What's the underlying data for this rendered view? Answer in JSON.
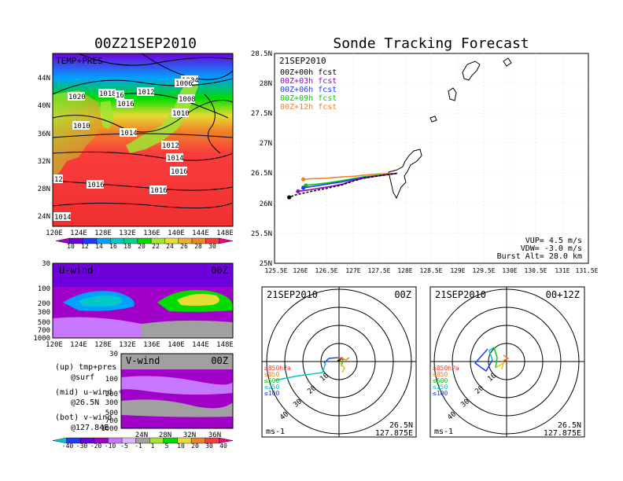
{
  "colors": {
    "frame": "#000000",
    "fcst_00h": "#000000",
    "fcst_03h": "#a000c8",
    "fcst_06h": "#1e3cff",
    "fcst_09h": "#00d000",
    "fcst_12h": "#f08228",
    "temp_scale": [
      "#a000c8",
      "#6e00dc",
      "#1e3cff",
      "#00a0ff",
      "#00c8c8",
      "#00d28c",
      "#00dc00",
      "#a0e632",
      "#e6dc32",
      "#e6af2d",
      "#f08228",
      "#fa3c3c",
      "#f00082"
    ],
    "wind_scale": [
      "#00c8c8",
      "#1e3cff",
      "#6e00dc",
      "#a000c8",
      "#c878ff",
      "#dcb4ff",
      "#a0a0a0",
      "#a0e632",
      "#00dc00",
      "#e6dc32",
      "#f08228",
      "#fa3c3c",
      "#f00082"
    ]
  },
  "left_title": "00Z21SEP2010",
  "right_title": "Sonde Tracking Forecast",
  "map_panel": {
    "label": "TEMP+PRES",
    "lat_labels": [
      "44N",
      "40N",
      "36N",
      "32N",
      "28N",
      "24N"
    ],
    "lon_labels": [
      "120E",
      "124E",
      "128E",
      "132E",
      "136E",
      "140E",
      "144E",
      "148E"
    ],
    "isobar_labels": [
      "1004",
      "1006",
      "1008",
      "1010",
      "1010",
      "1012",
      "1012",
      "1014",
      "1014",
      "1014",
      "1016",
      "1016",
      "1016",
      "1016",
      "1018",
      "1020",
      "16",
      "12"
    ],
    "colorbar_ticks": [
      "10",
      "12",
      "14",
      "16",
      "18",
      "20",
      "22",
      "24",
      "26",
      "28",
      "30"
    ]
  },
  "u_panel": {
    "label": "U-wind",
    "time": "00Z",
    "p_labels": [
      "30",
      "100",
      "200",
      "300",
      "500",
      "700",
      "1000"
    ],
    "lon_labels": [
      "120E",
      "124E",
      "128E",
      "132E",
      "136E",
      "140E",
      "144E",
      "148E"
    ]
  },
  "v_panel": {
    "label": "V-wind",
    "time": "00Z",
    "p_labels": [
      "30",
      "100",
      "200",
      "300",
      "500",
      "700",
      "1000"
    ],
    "lat_labels": [
      "24N",
      "28N",
      "32N",
      "36N"
    ],
    "colorbar_ticks": [
      "-40",
      "-30",
      "-20",
      "-10",
      "-5",
      "-1",
      "1",
      "5",
      "10",
      "20",
      "30",
      "40"
    ]
  },
  "notes": {
    "up": "(up) tmp+pres",
    "up2": "@surf",
    "mid": "(mid) u-wind",
    "mid2": "@26.5N",
    "bot": "(bot) v-wind",
    "bot2": "@127.84E"
  },
  "track_panel": {
    "date": "21SEP2010",
    "legend": [
      "00Z+00h fcst",
      "00Z+03h fcst",
      "00Z+06h fcst",
      "00Z+09h fcst",
      "00Z+12h fcst"
    ],
    "lat_labels": [
      "28.5N",
      "28N",
      "27.5N",
      "27N",
      "26.5N",
      "26N",
      "25.5N",
      "25N"
    ],
    "lon_labels": [
      "125.5E",
      "126E",
      "126.5E",
      "127E",
      "127.5E",
      "128E",
      "128.5E",
      "129E",
      "129.5E",
      "130E",
      "130.5E",
      "131E",
      "131.5E"
    ],
    "vup": "VUP= 4.5 m/s",
    "vdw": "VDW= -3.0 m/s",
    "burst": "Burst Alt= 28.0 km"
  },
  "hodo_left": {
    "date": "21SEP2010",
    "time": "00Z",
    "units": "ms-1",
    "lat": "26.5N",
    "lon": "127.875E",
    "ring_labels": [
      "10",
      "20",
      "30",
      "40"
    ],
    "levels": [
      "≥850hPa",
      "≤850",
      "≤500",
      "≤250",
      "≤100"
    ]
  },
  "hodo_right": {
    "date": "21SEP2010",
    "time": "00+12Z",
    "units": "ms-1",
    "lat": "26.5N",
    "lon": "127.875E",
    "ring_labels": [
      "10",
      "20",
      "30",
      "40"
    ],
    "levels": [
      "≥850hPa",
      "≤850",
      "≤500",
      "≤250",
      "≤100"
    ]
  },
  "chart_data": {
    "type": "line",
    "title": "Sonde Tracking Forecast",
    "xlabel": "",
    "ylabel": "",
    "xlim": [
      125.5,
      131.5
    ],
    "ylim": [
      25.0,
      28.5
    ],
    "series": [
      {
        "name": "00Z+00h fcst",
        "x": [
          127.84,
          127.5,
          127.2,
          127.0,
          126.8,
          126.5,
          126.2,
          125.9,
          125.78
        ],
        "y": [
          26.5,
          26.46,
          26.42,
          26.37,
          26.31,
          26.25,
          26.2,
          26.14,
          26.1
        ]
      },
      {
        "name": "00Z+03h fcst",
        "x": [
          127.84,
          127.5,
          127.2,
          127.0,
          126.8,
          126.5,
          126.2,
          125.95
        ],
        "y": [
          26.5,
          26.46,
          26.42,
          26.38,
          26.32,
          26.27,
          26.23,
          26.2
        ]
      },
      {
        "name": "00Z+06h fcst",
        "x": [
          127.84,
          127.5,
          127.2,
          127.0,
          126.8,
          126.5,
          126.2,
          126.05
        ],
        "y": [
          26.5,
          26.46,
          26.43,
          26.4,
          26.36,
          26.32,
          26.28,
          26.26
        ]
      },
      {
        "name": "00Z+09h fcst",
        "x": [
          127.84,
          127.5,
          127.2,
          127.0,
          126.8,
          126.5,
          126.2,
          126.1
        ],
        "y": [
          26.5,
          26.47,
          26.44,
          26.41,
          26.38,
          26.34,
          26.31,
          26.3
        ]
      },
      {
        "name": "00Z+12h fcst",
        "x": [
          127.84,
          127.5,
          127.2,
          127.0,
          126.8,
          126.5,
          126.2,
          126.05
        ],
        "y": [
          26.5,
          26.49,
          26.47,
          26.45,
          26.44,
          26.42,
          26.41,
          26.4
        ]
      }
    ]
  }
}
